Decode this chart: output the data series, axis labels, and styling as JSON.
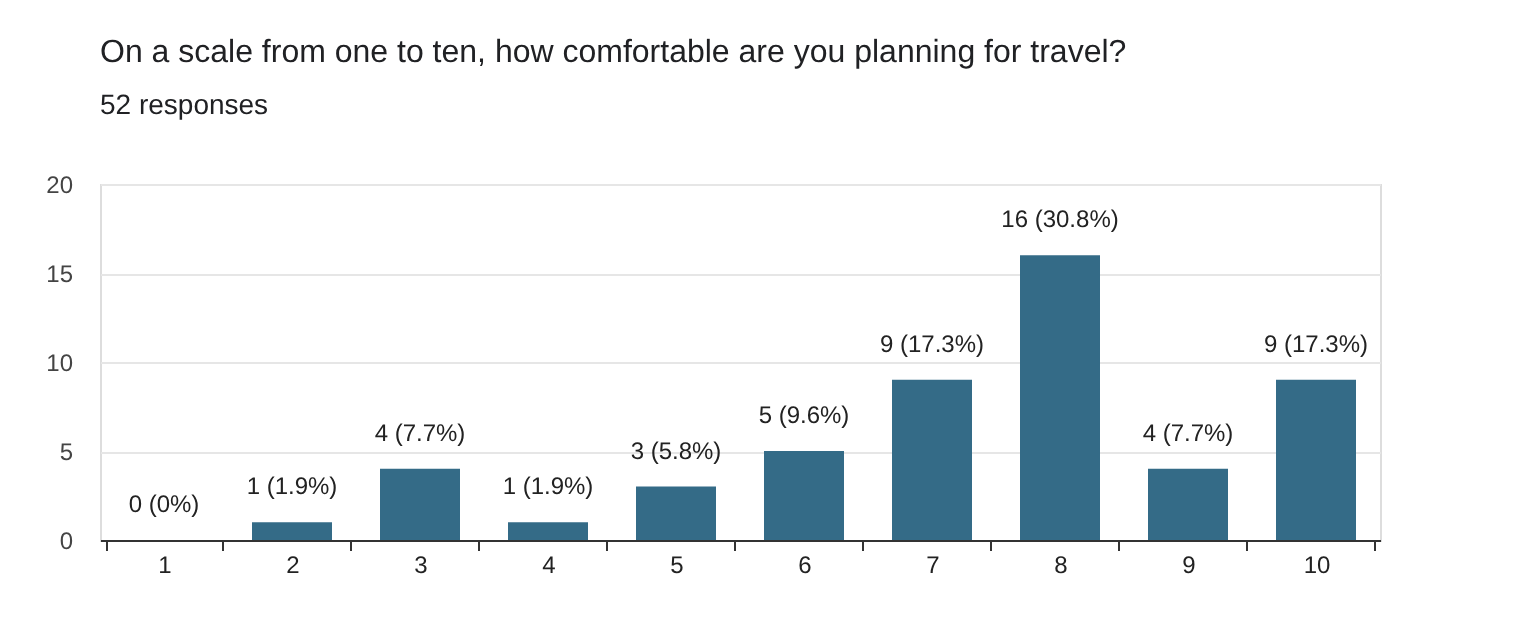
{
  "chart_data": {
    "type": "bar",
    "title": "On a scale from one to ten, how comfortable are you planning for travel?",
    "subtitle": "52 responses",
    "categories": [
      "1",
      "2",
      "3",
      "4",
      "5",
      "6",
      "7",
      "8",
      "9",
      "10"
    ],
    "values": [
      0,
      1,
      4,
      1,
      3,
      5,
      9,
      16,
      4,
      9
    ],
    "value_labels": [
      "0 (0%)",
      "1 (1.9%)",
      "4 (7.7%)",
      "1 (1.9%)",
      "3 (5.8%)",
      "5 (9.6%)",
      "9 (17.3%)",
      "16 (30.8%)",
      "4 (7.7%)",
      "9 (17.3%)"
    ],
    "color": "#346b87",
    "ylim": [
      0,
      20
    ],
    "yticks": [
      0,
      5,
      10,
      15,
      20
    ],
    "grid": "y"
  }
}
